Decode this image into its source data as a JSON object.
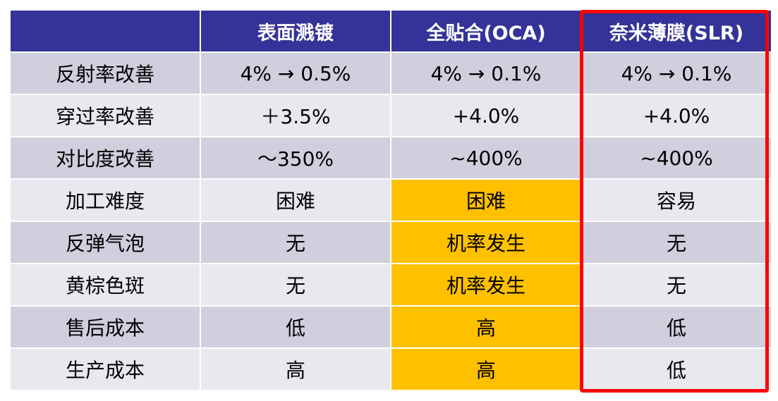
{
  "table": {
    "headers": [
      "",
      "表面溅镀",
      "全贴合(OCA)",
      "奈米薄膜(SLR)"
    ],
    "rows": [
      [
        "反射率改善",
        "4% → 0.5%",
        "4% → 0.1%",
        "4% → 0.1%"
      ],
      [
        "穿过率改善",
        "＋3.5%",
        "+4.0%",
        "+4.0%"
      ],
      [
        "对比度改善",
        "～350%",
        "~400%",
        "~400%"
      ],
      [
        "加工难度",
        "困难",
        "困难",
        "容易"
      ],
      [
        "反弹气泡",
        "无",
        "机率发生",
        "无"
      ],
      [
        "黄棕色斑",
        "无",
        "机率发生",
        "无"
      ],
      [
        "售后成本",
        "低",
        "高",
        "低"
      ],
      [
        "生产成本",
        "高",
        "高",
        "低"
      ]
    ]
  },
  "colors": {
    "header_bg": "#333399",
    "header_text": "#ffffff",
    "row_odd_bg": "#cfcfde",
    "row_even_bg": "#e8e8ef",
    "highlight_cell_bg": "#ffc000",
    "highlight_box_border": "#ff0000"
  }
}
